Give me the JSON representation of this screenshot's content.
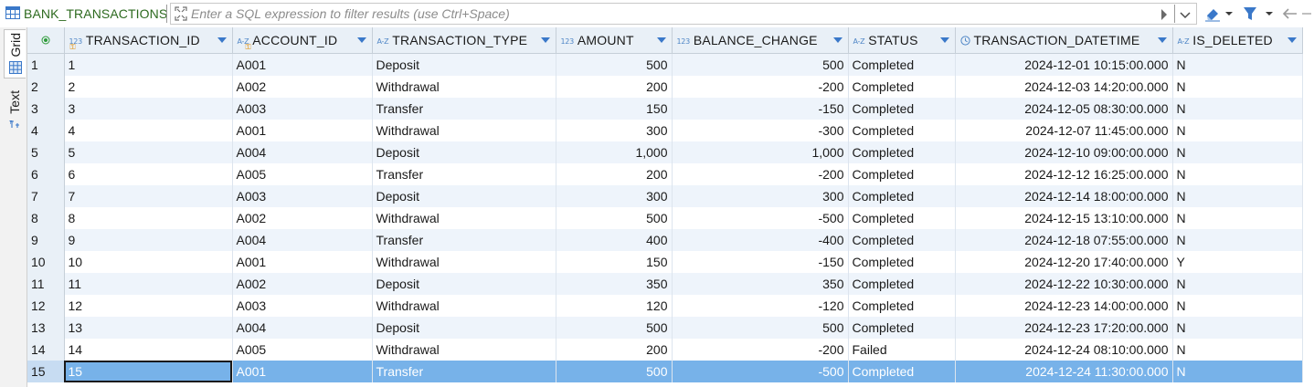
{
  "toolbar": {
    "table_name": "BANK_TRANSACTIONS",
    "filter_placeholder": "Enter a SQL expression to filter results (use Ctrl+Space)"
  },
  "sidebar": {
    "tabs": [
      {
        "label": "Grid",
        "icon": "grid-icon",
        "active": true
      },
      {
        "label": "Text",
        "icon": "text-icon",
        "active": false
      }
    ]
  },
  "grid": {
    "columns": [
      {
        "name": "TRANSACTION_ID",
        "type": "123",
        "key": true
      },
      {
        "name": "ACCOUNT_ID",
        "type": "A-Z",
        "key": true
      },
      {
        "name": "TRANSACTION_TYPE",
        "type": "A-Z",
        "key": false
      },
      {
        "name": "AMOUNT",
        "type": "123",
        "key": false
      },
      {
        "name": "BALANCE_CHANGE",
        "type": "123",
        "key": false
      },
      {
        "name": "STATUS",
        "type": "A-Z",
        "key": false
      },
      {
        "name": "TRANSACTION_DATETIME",
        "type": "clock",
        "key": false
      },
      {
        "name": "IS_DELETED",
        "type": "A-Z",
        "key": false
      }
    ],
    "rows": [
      {
        "n": "1",
        "cells": [
          "1",
          "A001",
          "Deposit",
          "500",
          "500",
          "Completed",
          "2024-12-01 10:15:00.000",
          "N"
        ]
      },
      {
        "n": "2",
        "cells": [
          "2",
          "A002",
          "Withdrawal",
          "200",
          "-200",
          "Completed",
          "2024-12-03 14:20:00.000",
          "N"
        ]
      },
      {
        "n": "3",
        "cells": [
          "3",
          "A003",
          "Transfer",
          "150",
          "-150",
          "Completed",
          "2024-12-05 08:30:00.000",
          "N"
        ]
      },
      {
        "n": "4",
        "cells": [
          "4",
          "A001",
          "Withdrawal",
          "300",
          "-300",
          "Completed",
          "2024-12-07 11:45:00.000",
          "N"
        ]
      },
      {
        "n": "5",
        "cells": [
          "5",
          "A004",
          "Deposit",
          "1,000",
          "1,000",
          "Completed",
          "2024-12-10 09:00:00.000",
          "N"
        ]
      },
      {
        "n": "6",
        "cells": [
          "6",
          "A005",
          "Transfer",
          "200",
          "-200",
          "Completed",
          "2024-12-12 16:25:00.000",
          "N"
        ]
      },
      {
        "n": "7",
        "cells": [
          "7",
          "A003",
          "Deposit",
          "300",
          "300",
          "Completed",
          "2024-12-14 18:00:00.000",
          "N"
        ]
      },
      {
        "n": "8",
        "cells": [
          "8",
          "A002",
          "Withdrawal",
          "500",
          "-500",
          "Completed",
          "2024-12-15 13:10:00.000",
          "N"
        ]
      },
      {
        "n": "9",
        "cells": [
          "9",
          "A004",
          "Transfer",
          "400",
          "-400",
          "Completed",
          "2024-12-18 07:55:00.000",
          "N"
        ]
      },
      {
        "n": "10",
        "cells": [
          "10",
          "A001",
          "Withdrawal",
          "150",
          "-150",
          "Completed",
          "2024-12-20 17:40:00.000",
          "Y"
        ]
      },
      {
        "n": "11",
        "cells": [
          "11",
          "A002",
          "Deposit",
          "350",
          "350",
          "Completed",
          "2024-12-22 10:30:00.000",
          "N"
        ]
      },
      {
        "n": "12",
        "cells": [
          "12",
          "A003",
          "Withdrawal",
          "120",
          "-120",
          "Completed",
          "2024-12-23 14:00:00.000",
          "N"
        ]
      },
      {
        "n": "13",
        "cells": [
          "13",
          "A004",
          "Deposit",
          "500",
          "500",
          "Completed",
          "2024-12-23 17:20:00.000",
          "N"
        ]
      },
      {
        "n": "14",
        "cells": [
          "14",
          "A005",
          "Withdrawal",
          "200",
          "-200",
          "Failed",
          "2024-12-24 08:10:00.000",
          "N"
        ]
      },
      {
        "n": "15",
        "cells": [
          "15",
          "A001",
          "Transfer",
          "500",
          "-500",
          "Completed",
          "2024-12-24 11:30:00.000",
          "N"
        ]
      }
    ],
    "selected_row": 14
  },
  "colors": {
    "header_bg": "#e9f0f7",
    "stripe": "#eef4fb",
    "selection": "#77b2e9",
    "accent": "#3a78c9",
    "table_name": "#2d6a1f"
  }
}
